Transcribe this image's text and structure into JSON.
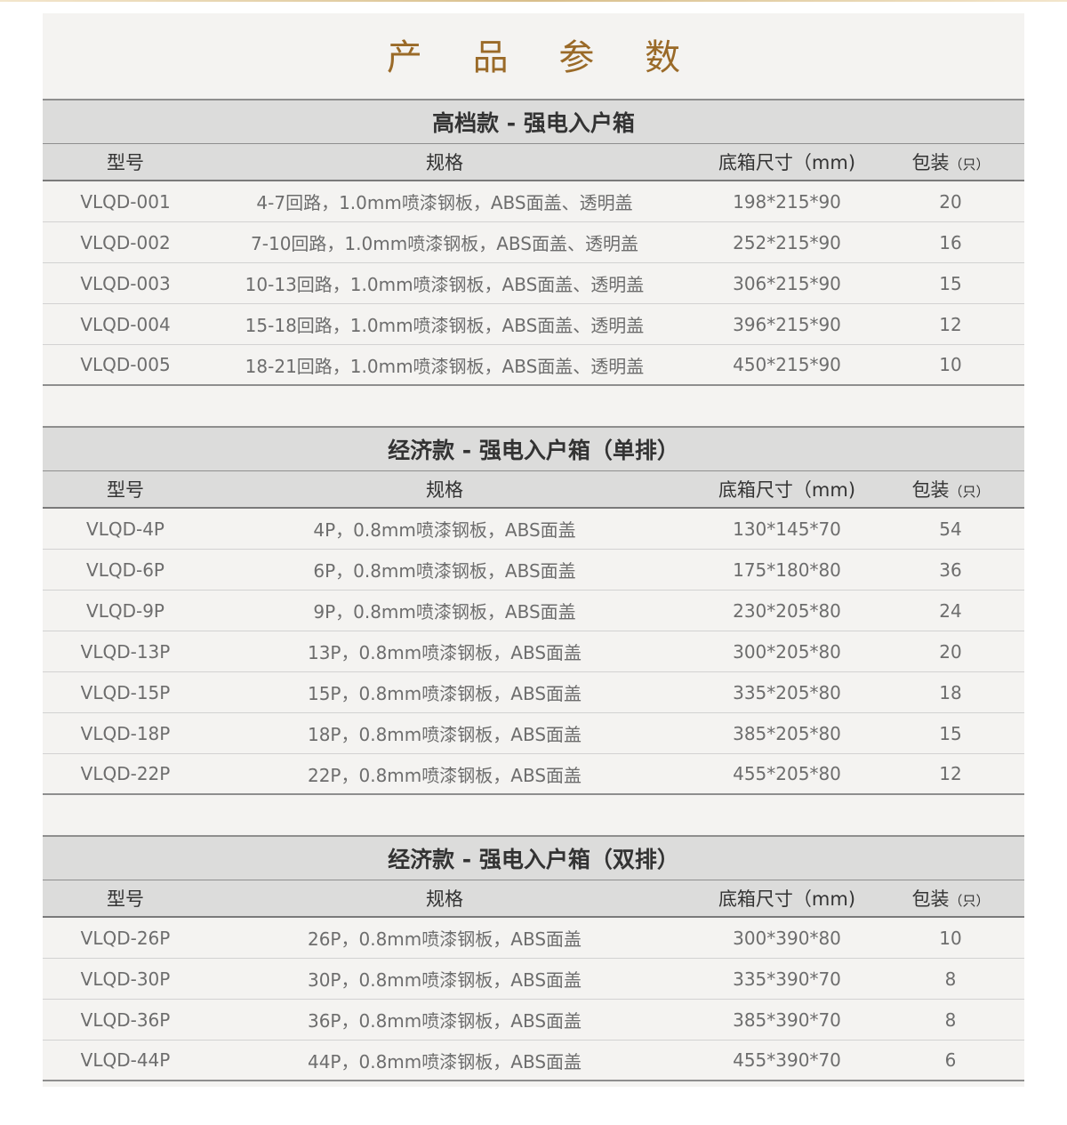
{
  "title": "产 品 参 数",
  "columns": {
    "model": "型号",
    "spec": "规格",
    "size": "底箱尺寸（mm)",
    "pack": "包装",
    "pack_unit": "（只）"
  },
  "sections": [
    {
      "title": "高档款 - 强电入户箱",
      "rows": [
        [
          "VLQD-001",
          "4-7回路，1.0mm喷漆钢板，ABS面盖、透明盖",
          "198*215*90",
          "20"
        ],
        [
          "VLQD-002",
          "7-10回路，1.0mm喷漆钢板，ABS面盖、透明盖",
          "252*215*90",
          "16"
        ],
        [
          "VLQD-003",
          "10-13回路，1.0mm喷漆钢板，ABS面盖、透明盖",
          "306*215*90",
          "15"
        ],
        [
          "VLQD-004",
          "15-18回路，1.0mm喷漆钢板，ABS面盖、透明盖",
          "396*215*90",
          "12"
        ],
        [
          "VLQD-005",
          "18-21回路，1.0mm喷漆钢板，ABS面盖、透明盖",
          "450*215*90",
          "10"
        ]
      ]
    },
    {
      "title": "经济款 - 强电入户箱（单排）",
      "rows": [
        [
          "VLQD-4P",
          "4P，0.8mm喷漆钢板，ABS面盖",
          "130*145*70",
          "54"
        ],
        [
          "VLQD-6P",
          "6P，0.8mm喷漆钢板，ABS面盖",
          "175*180*80",
          "36"
        ],
        [
          "VLQD-9P",
          "9P，0.8mm喷漆钢板，ABS面盖",
          "230*205*80",
          "24"
        ],
        [
          "VLQD-13P",
          "13P，0.8mm喷漆钢板，ABS面盖",
          "300*205*80",
          "20"
        ],
        [
          "VLQD-15P",
          "15P，0.8mm喷漆钢板，ABS面盖",
          "335*205*80",
          "18"
        ],
        [
          "VLQD-18P",
          "18P，0.8mm喷漆钢板，ABS面盖",
          "385*205*80",
          "15"
        ],
        [
          "VLQD-22P",
          "22P，0.8mm喷漆钢板，ABS面盖",
          "455*205*80",
          "12"
        ]
      ]
    },
    {
      "title": "经济款 - 强电入户箱（双排）",
      "rows": [
        [
          "VLQD-26P",
          "26P，0.8mm喷漆钢板，ABS面盖",
          "300*390*80",
          "10"
        ],
        [
          "VLQD-30P",
          "30P，0.8mm喷漆钢板，ABS面盖",
          "335*390*70",
          "8"
        ],
        [
          "VLQD-36P",
          "36P，0.8mm喷漆钢板，ABS面盖",
          "385*390*70",
          "8"
        ],
        [
          "VLQD-44P",
          "44P，0.8mm喷漆钢板，ABS面盖",
          "455*390*70",
          "6"
        ]
      ]
    }
  ],
  "colors": {
    "title": "#9a6a28",
    "header_bg": "#dcdcdb",
    "panel_bg": "#f4f3f1"
  }
}
